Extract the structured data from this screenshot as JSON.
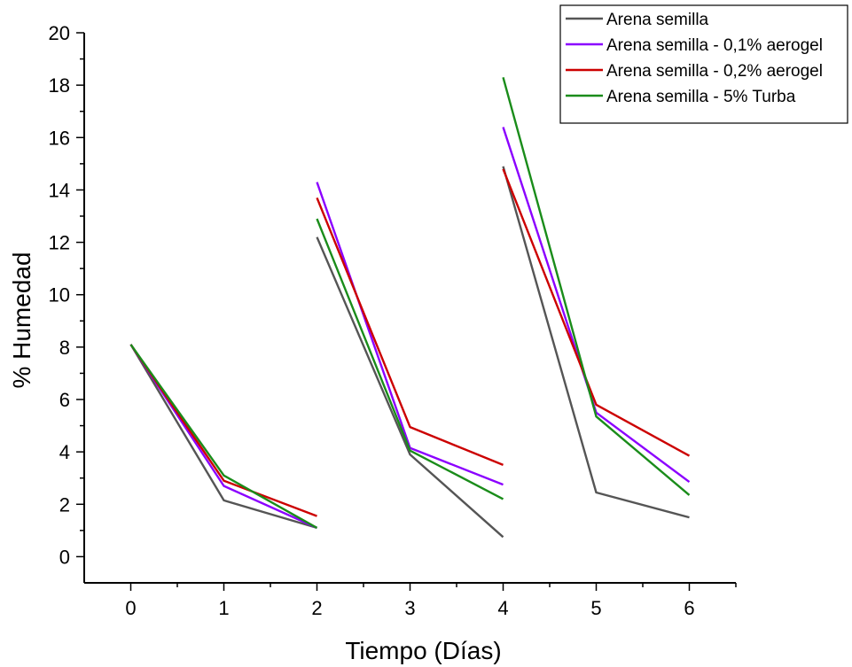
{
  "chart_data": {
    "type": "line",
    "xlabel": "Tiempo (Días)",
    "ylabel": "% Humedad",
    "xlim": [
      -0.5,
      6.5
    ],
    "ylim": [
      -1,
      20
    ],
    "x_ticks": [
      "0",
      "1",
      "2",
      "3",
      "4",
      "5",
      "6"
    ],
    "y_ticks": [
      "0",
      "2",
      "4",
      "6",
      "8",
      "10",
      "12",
      "14",
      "16",
      "18",
      "20"
    ],
    "grid": false,
    "legend_position": "top-right",
    "series": [
      {
        "name": "Arena semilla",
        "color": "#555555",
        "segments": [
          [
            [
              0,
              8.1
            ],
            [
              1,
              2.15
            ],
            [
              2,
              1.1
            ]
          ],
          [
            [
              2,
              12.2
            ],
            [
              3,
              3.9
            ],
            [
              4,
              0.75
            ]
          ],
          [
            [
              4,
              14.9
            ],
            [
              5,
              2.45
            ],
            [
              6,
              1.5
            ]
          ]
        ]
      },
      {
        "name": "Arena semilla - 0,1% aerogel",
        "color": "#8b00ff",
        "segments": [
          [
            [
              0,
              8.1
            ],
            [
              1,
              2.7
            ],
            [
              2,
              1.1
            ]
          ],
          [
            [
              2,
              14.3
            ],
            [
              3,
              4.15
            ],
            [
              4,
              2.75
            ]
          ],
          [
            [
              4,
              16.4
            ],
            [
              5,
              5.5
            ],
            [
              6,
              2.85
            ]
          ]
        ]
      },
      {
        "name": "Arena semilla - 0,2% aerogel",
        "color": "#cc0000",
        "segments": [
          [
            [
              0,
              8.1
            ],
            [
              1,
              2.9
            ],
            [
              2,
              1.55
            ]
          ],
          [
            [
              2,
              13.7
            ],
            [
              3,
              4.95
            ],
            [
              4,
              3.5
            ]
          ],
          [
            [
              4,
              14.8
            ],
            [
              5,
              5.8
            ],
            [
              6,
              3.85
            ]
          ]
        ]
      },
      {
        "name": "Arena semilla - 5% Turba",
        "color": "#1a8c1a",
        "segments": [
          [
            [
              0,
              8.1
            ],
            [
              1,
              3.1
            ],
            [
              2,
              1.1
            ]
          ],
          [
            [
              2,
              12.9
            ],
            [
              3,
              4.05
            ],
            [
              4,
              2.2
            ]
          ],
          [
            [
              4,
              18.3
            ],
            [
              5,
              5.35
            ],
            [
              6,
              2.35
            ]
          ]
        ]
      }
    ]
  }
}
